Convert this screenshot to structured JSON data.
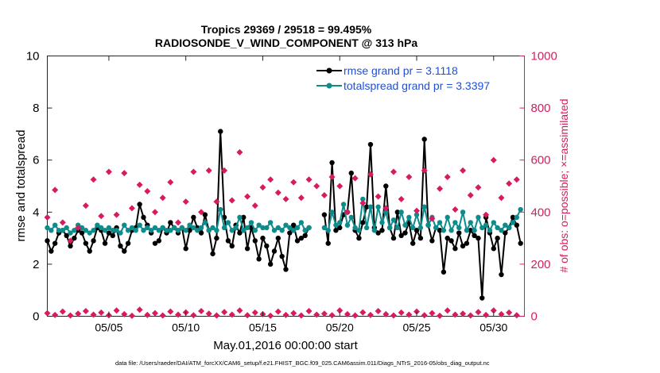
{
  "chart_data": {
    "type": "line",
    "title_line1": "Tropics 29369 / 29518 = 99.495%",
    "title_line2": "RADIOSONDE_V_WIND_COMPONENT @ 313 hPa",
    "xlabel": "May.01,2016 00:00:00 start",
    "ylabel_left": "rmse and totalspread",
    "ylabel_right": "# of obs: o=possible; ×=assimilated",
    "footnote": "data file: /Users/raeder/DAI/ATM_forcXX/CAM6_setup/f.e21.FHIST_BGC.f09_025.CAM6assim.011/Diags_NTrS_2016-05/obs_diag_output.nc",
    "xlim": [
      1,
      32
    ],
    "ylim_left": [
      0,
      10
    ],
    "ylim_right": [
      0,
      1000
    ],
    "x_ticks": [
      5,
      10,
      15,
      20,
      25,
      30
    ],
    "x_tick_labels": [
      "05/05",
      "05/10",
      "05/15",
      "05/20",
      "05/25",
      "05/30"
    ],
    "y_left_ticks": [
      "0",
      "2",
      "4",
      "6",
      "8",
      "10"
    ],
    "y_right_ticks": [
      "0",
      "200",
      "400",
      "600",
      "800",
      "1000"
    ],
    "legend": [
      "rmse grand pr = 3.1118",
      "totalspread grand pr = 3.3397"
    ],
    "colors": {
      "rmse": "#000000",
      "spread": "#0d8c8c",
      "obs": "#d81b60",
      "legend_text": "#1f4fd8"
    },
    "series": [
      {
        "name": "rmse",
        "axis": "left",
        "segments": [
          {
            "x": [
              1.0,
              1.25,
              1.5,
              1.75,
              2.0,
              2.25,
              2.5,
              2.75,
              3.0,
              3.25,
              3.5,
              3.75,
              4.0,
              4.25,
              4.5,
              4.75,
              5.0,
              5.25,
              5.5,
              5.75,
              6.0,
              6.25,
              6.5,
              6.75,
              7.0,
              7.25,
              7.5,
              7.75
            ],
            "y": [
              2.9,
              2.5,
              2.8,
              3.2,
              3.3,
              3.1,
              2.7,
              3.0,
              3.3,
              3.2,
              2.8,
              2.5,
              2.9,
              3.4,
              3.3,
              2.8,
              3.2,
              3.1,
              3.4,
              2.7,
              2.5,
              2.8,
              3.3,
              3.4,
              4.3,
              3.8,
              3.5,
              3.2
            ]
          },
          {
            "x": [
              8.0,
              8.25,
              8.5,
              8.75,
              9.0,
              9.25,
              9.5,
              9.75,
              10.0,
              10.25,
              10.5,
              10.75,
              11.0,
              11.25,
              11.5,
              11.75,
              12.0,
              12.25,
              12.5,
              12.75,
              13.0,
              13.25,
              13.5,
              13.75,
              14.0,
              14.25,
              14.5,
              14.75,
              15.0,
              15.25,
              15.5,
              15.75,
              16.0,
              16.25,
              16.5,
              16.75,
              17.0,
              17.25,
              17.5,
              17.75,
              18.0
            ],
            "y": [
              2.8,
              2.9,
              3.4,
              3.2,
              3.6,
              3.4,
              3.2,
              3.4,
              2.6,
              3.3,
              3.8,
              3.4,
              3.2,
              3.9,
              3.3,
              2.4,
              3.0,
              7.1,
              3.8,
              2.9,
              2.7,
              3.5,
              3.2,
              3.8,
              2.6,
              3.4,
              2.9,
              2.2,
              3.0,
              2.7,
              2.0,
              2.5,
              3.0,
              2.3,
              1.8,
              3.2,
              3.5,
              2.9,
              3.0,
              3.1,
              3.4
            ]
          },
          {
            "x": [
              19.0,
              19.25,
              19.5,
              19.75,
              20.0,
              20.25,
              20.5,
              20.75,
              21.0,
              21.25,
              21.5,
              21.75,
              22.0,
              22.25,
              22.5,
              22.75,
              23.0,
              23.25,
              23.5,
              23.75,
              24.0,
              24.25,
              24.5,
              24.75,
              25.0,
              25.25,
              25.5,
              25.75,
              26.0,
              26.25,
              26.5,
              26.75,
              27.0,
              27.25,
              27.5,
              27.75,
              28.0,
              28.25,
              28.5,
              28.75,
              29.0,
              29.25,
              29.5,
              29.75,
              30.0,
              30.25,
              30.5,
              30.75,
              31.0,
              31.25,
              31.5,
              31.75
            ],
            "y": [
              3.9,
              2.8,
              5.9,
              3.3,
              3.4,
              3.9,
              4.0,
              5.5,
              3.3,
              3.0,
              3.6,
              4.2,
              6.6,
              3.4,
              3.2,
              3.3,
              5.0,
              3.4,
              3.0,
              4.0,
              3.1,
              3.2,
              3.6,
              2.8,
              3.3,
              3.0,
              6.8,
              3.5,
              2.9,
              3.4,
              3.3,
              1.7,
              3.0,
              2.9,
              2.6,
              3.2,
              2.7,
              2.8,
              3.3,
              3.1,
              3.0,
              0.7,
              3.8,
              3.2,
              2.6,
              3.0,
              1.6,
              3.2,
              3.4,
              3.8,
              3.5,
              2.8
            ]
          }
        ]
      },
      {
        "name": "totalspread",
        "axis": "left",
        "segments": [
          {
            "x": [
              1.0,
              1.25,
              1.5,
              1.75,
              2.0,
              2.25,
              2.5,
              2.75,
              3.0,
              3.25,
              3.5,
              3.75,
              4.0,
              4.25,
              4.5,
              4.75,
              5.0,
              5.25,
              5.5,
              5.75,
              6.0,
              6.25,
              6.5,
              6.75,
              7.0,
              7.25,
              7.5,
              7.75
            ],
            "y": [
              3.4,
              3.3,
              3.5,
              3.3,
              3.3,
              3.4,
              3.2,
              3.3,
              3.5,
              3.4,
              3.3,
              3.2,
              3.3,
              3.5,
              3.4,
              3.3,
              3.4,
              3.3,
              3.3,
              3.2,
              3.5,
              3.3,
              3.4,
              3.3,
              3.5,
              3.3,
              3.4,
              3.3
            ]
          },
          {
            "x": [
              8.0,
              8.25,
              8.5,
              8.75,
              9.0,
              9.25,
              9.5,
              9.75,
              10.0,
              10.25,
              10.5,
              10.75,
              11.0,
              11.25,
              11.5,
              11.75,
              12.0,
              12.25,
              12.5,
              12.75,
              13.0,
              13.25,
              13.5,
              13.75,
              14.0,
              14.25,
              14.5,
              14.75,
              15.0,
              15.25,
              15.5,
              15.75,
              16.0,
              16.25,
              16.5,
              16.75,
              17.0,
              17.25,
              17.5,
              17.75,
              18.0
            ],
            "y": [
              3.4,
              3.3,
              3.4,
              3.3,
              3.3,
              3.4,
              3.3,
              3.4,
              3.3,
              3.5,
              3.4,
              3.3,
              3.4,
              3.6,
              3.3,
              3.4,
              3.3,
              4.1,
              3.4,
              3.6,
              3.3,
              3.4,
              3.8,
              3.3,
              3.4,
              3.6,
              3.3,
              3.5,
              3.4,
              3.4,
              3.6,
              3.3,
              3.4,
              3.3,
              3.5,
              3.4,
              3.3,
              3.4,
              3.6,
              3.3,
              3.4
            ]
          },
          {
            "x": [
              19.0,
              19.25,
              19.5,
              19.75,
              20.0,
              20.25,
              20.5,
              20.75,
              21.0,
              21.25,
              21.5,
              21.75,
              22.0,
              22.25,
              22.5,
              22.75,
              23.0,
              23.25,
              23.5,
              23.75,
              24.0,
              24.25,
              24.5,
              24.75,
              25.0,
              25.25,
              25.5,
              25.75,
              26.0,
              26.25,
              26.5,
              26.75,
              27.0,
              27.25,
              27.5,
              27.75,
              28.0,
              28.25,
              28.5,
              28.75,
              29.0,
              29.25,
              29.5,
              29.75,
              30.0,
              30.25,
              30.5,
              30.75,
              31.0,
              31.25,
              31.5,
              31.75
            ],
            "y": [
              3.4,
              3.3,
              4.0,
              3.5,
              3.6,
              4.3,
              3.5,
              3.8,
              3.4,
              3.3,
              4.5,
              3.4,
              4.2,
              3.3,
              4.2,
              3.6,
              4.0,
              3.4,
              3.7,
              3.4,
              4.0,
              3.5,
              3.8,
              3.4,
              3.9,
              3.4,
              4.2,
              3.5,
              3.8,
              3.4,
              3.6,
              3.3,
              3.8,
              3.3,
              3.6,
              3.4,
              4.0,
              3.3,
              3.6,
              3.3,
              3.8,
              3.4,
              3.5,
              3.3,
              3.6,
              3.4,
              3.3,
              3.5,
              3.4,
              3.6,
              3.8,
              4.1
            ]
          }
        ]
      },
      {
        "name": "possible",
        "axis": "right",
        "marker": "diamond",
        "x": [
          1.0,
          1.5,
          2.0,
          2.5,
          3.0,
          3.5,
          4.0,
          4.5,
          5.0,
          5.5,
          6.0,
          6.5,
          7.0,
          7.5,
          8.0,
          8.5,
          9.0,
          9.5,
          10.0,
          10.5,
          11.0,
          11.5,
          12.0,
          12.5,
          13.0,
          13.5,
          14.0,
          14.5,
          15.0,
          15.5,
          16.0,
          16.5,
          17.0,
          17.5,
          18.0,
          18.5,
          19.0,
          19.5,
          20.0,
          20.5,
          21.0,
          21.5,
          22.0,
          22.5,
          23.0,
          23.5,
          24.0,
          24.5,
          25.0,
          25.5,
          26.0,
          26.5,
          27.0,
          27.5,
          28.0,
          28.5,
          29.0,
          29.5,
          30.0,
          30.5,
          31.0,
          31.5
        ],
        "y": [
          380,
          485,
          360,
          290,
          340,
          425,
          525,
          385,
          555,
          390,
          550,
          415,
          505,
          480,
          400,
          455,
          515,
          360,
          440,
          555,
          400,
          560,
          440,
          560,
          445,
          630,
          460,
          425,
          495,
          525,
          475,
          450,
          515,
          455,
          525,
          500,
          465,
          535,
          500,
          400,
          530,
          435,
          545,
          460,
          415,
          555,
          450,
          535,
          405,
          560,
          375,
          490,
          535,
          410,
          560,
          465,
          495,
          390,
          600,
          455,
          510,
          525
        ]
      },
      {
        "name": "assimilated",
        "axis": "right",
        "marker": "diamond",
        "x": [
          1.0,
          1.5,
          2.0,
          2.5,
          3.0,
          3.5,
          4.0,
          4.5,
          5.0,
          5.5,
          6.0,
          6.5,
          7.0,
          7.5,
          8.0,
          8.5,
          9.0,
          9.5,
          10.0,
          10.5,
          11.0,
          11.5,
          12.0,
          12.5,
          13.0,
          13.5,
          14.0,
          14.5,
          15.0,
          15.5,
          16.0,
          16.5,
          17.0,
          17.5,
          18.0,
          18.5,
          19.0,
          19.5,
          20.0,
          20.5,
          21.0,
          21.5,
          22.0,
          22.5,
          23.0,
          23.5,
          24.0,
          24.5,
          25.0,
          25.5,
          26.0,
          26.5,
          27.0,
          27.5,
          28.0,
          28.5,
          29.0,
          29.5,
          30.0,
          30.5,
          31.0,
          31.5
        ],
        "y": [
          12,
          5,
          18,
          3,
          10,
          20,
          6,
          14,
          4,
          22,
          8,
          2,
          25,
          5,
          12,
          3,
          18,
          6,
          15,
          4,
          20,
          10,
          3,
          16,
          6,
          22,
          4,
          14,
          8,
          2,
          18,
          5,
          12,
          3,
          20,
          6,
          10,
          4,
          22,
          8,
          3,
          15,
          5,
          20,
          8,
          3,
          14,
          6,
          18,
          4,
          12,
          2,
          22,
          6,
          10,
          3,
          16,
          5,
          22,
          8,
          14,
          4
        ]
      }
    ]
  }
}
